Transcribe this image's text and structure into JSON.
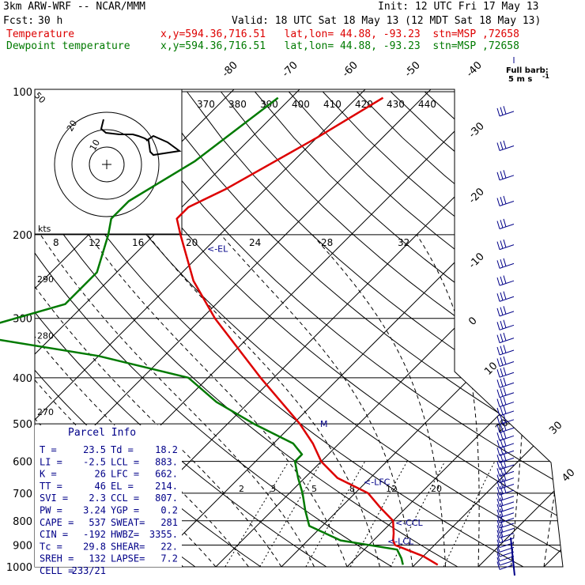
{
  "header": {
    "model": "3km ARW-WRF -- NCAR/MMM",
    "init": "Init: 12 UTC Fri 17 May 13",
    "fcst_label": "Fcst:",
    "fcst_value": "30 h",
    "valid": "Valid: 18 UTC Sat 18 May 13 (12 MDT Sat 18 May 13)",
    "temp_label": "Temperature",
    "temp_info": "x,y=594.36,716.51   lat,lon= 44.88, -93.23  stn=MSP ,72658",
    "dew_label": "Dewpoint temperature",
    "dew_info": "x,y=594.36,716.51   lat,lon= 44.88, -93.23  stn=MSP ,72658",
    "barb_title": "Full barb:",
    "barb_unit": "5 m s",
    "barb_unit_sup": "-1"
  },
  "colors": {
    "temperature": "#dd0000",
    "dewpoint": "#007a00",
    "annotation": "#000088"
  },
  "chart_data": {
    "type": "line",
    "pressure_ticks": [
      100,
      200,
      300,
      400,
      500,
      600,
      700,
      800,
      900,
      1000
    ],
    "isotherm_labels": [
      -80,
      -70,
      -60,
      -50,
      -40,
      -30,
      -20,
      -10,
      0,
      10,
      20,
      30,
      40
    ],
    "theta_labels": [
      370,
      380,
      390,
      400,
      410,
      420,
      430,
      440
    ],
    "hodograph_labels": [
      "kts",
      "8",
      "12",
      "16",
      "20",
      "24",
      "28",
      "32"
    ],
    "height_labels": [
      {
        "text": "290",
        "p": 247
      },
      {
        "text": "280",
        "p": 325
      },
      {
        "text": "270",
        "p": 470
      },
      {
        "text": "50",
        "p": 105
      }
    ],
    "mixing_ratio_labels": [
      "2",
      "3",
      "5",
      "8",
      "12",
      "20"
    ],
    "series": [
      {
        "name": "Temperature",
        "points": [
          [
            103,
            -56
          ],
          [
            125,
            -60
          ],
          [
            160,
            -66
          ],
          [
            175,
            -69
          ],
          [
            185,
            -69
          ],
          [
            200,
            -66
          ],
          [
            250,
            -57
          ],
          [
            300,
            -48
          ],
          [
            400,
            -32
          ],
          [
            500,
            -19
          ],
          [
            550,
            -14
          ],
          [
            600,
            -10
          ],
          [
            650,
            -5
          ],
          [
            700,
            2
          ],
          [
            750,
            6
          ],
          [
            800,
            10
          ],
          [
            850,
            12
          ],
          [
            880,
            13
          ],
          [
            900,
            14
          ],
          [
            950,
            20
          ],
          [
            990,
            23.5
          ]
        ]
      },
      {
        "name": "Dewpoint temperature",
        "points": [
          [
            103,
            -72
          ],
          [
            140,
            -75
          ],
          [
            170,
            -79
          ],
          [
            185,
            -79
          ],
          [
            200,
            -77
          ],
          [
            240,
            -73
          ],
          [
            280,
            -73
          ],
          [
            310,
            -81
          ],
          [
            325,
            -83
          ],
          [
            360,
            -60
          ],
          [
            400,
            -43
          ],
          [
            450,
            -35
          ],
          [
            500,
            -26
          ],
          [
            550,
            -17
          ],
          [
            580,
            -14
          ],
          [
            600,
            -14
          ],
          [
            650,
            -11
          ],
          [
            700,
            -8
          ],
          [
            760,
            -5
          ],
          [
            820,
            -2
          ],
          [
            880,
            5
          ],
          [
            920,
            15
          ],
          [
            960,
            17
          ],
          [
            990,
            18.2
          ]
        ]
      }
    ],
    "annotations": [
      {
        "text": "<-EL",
        "p": 214
      },
      {
        "text": "<-LFC",
        "p": 662
      },
      {
        "text": "<-CCL",
        "p": 807
      },
      {
        "text": "<-LCL",
        "p": 883
      },
      {
        "text": "M",
        "p": 500
      }
    ],
    "parcel_info": {
      "title": "Parcel Info",
      "rows": [
        {
          "k1": "T  =",
          "v1": "23.5",
          "k2": "Td =",
          "v2": "18.2"
        },
        {
          "k1": "LI =",
          "v1": "-2.5",
          "k2": "LCL =",
          "v2": "883."
        },
        {
          "k1": "K  =",
          "v1": "26",
          "k2": "LFC =",
          "v2": "662."
        },
        {
          "k1": "TT =",
          "v1": "46",
          "k2": "EL  =",
          "v2": "214."
        },
        {
          "k1": "SVI =",
          "v1": "2.3",
          "k2": "CCL =",
          "v2": "807."
        },
        {
          "k1": "PW =",
          "v1": "3.24",
          "k2": "YGP =",
          "v2": "0.2"
        },
        {
          "k1": "CAPE =",
          "v1": "537",
          "k2": "SWEAT=",
          "v2": "281"
        },
        {
          "k1": "CIN =",
          "v1": "-192",
          "k2": "HWBZ=",
          "v2": "3355."
        },
        {
          "k1": "Tc =",
          "v1": "29.8",
          "k2": "SHEAR=",
          "v2": "22."
        },
        {
          "k1": "SREH =",
          "v1": "132",
          "k2": "LAPSE=",
          "v2": "7.2"
        },
        {
          "k1": "CELL =",
          "v1": "233/21",
          "k2": "",
          "v2": ""
        }
      ]
    }
  }
}
